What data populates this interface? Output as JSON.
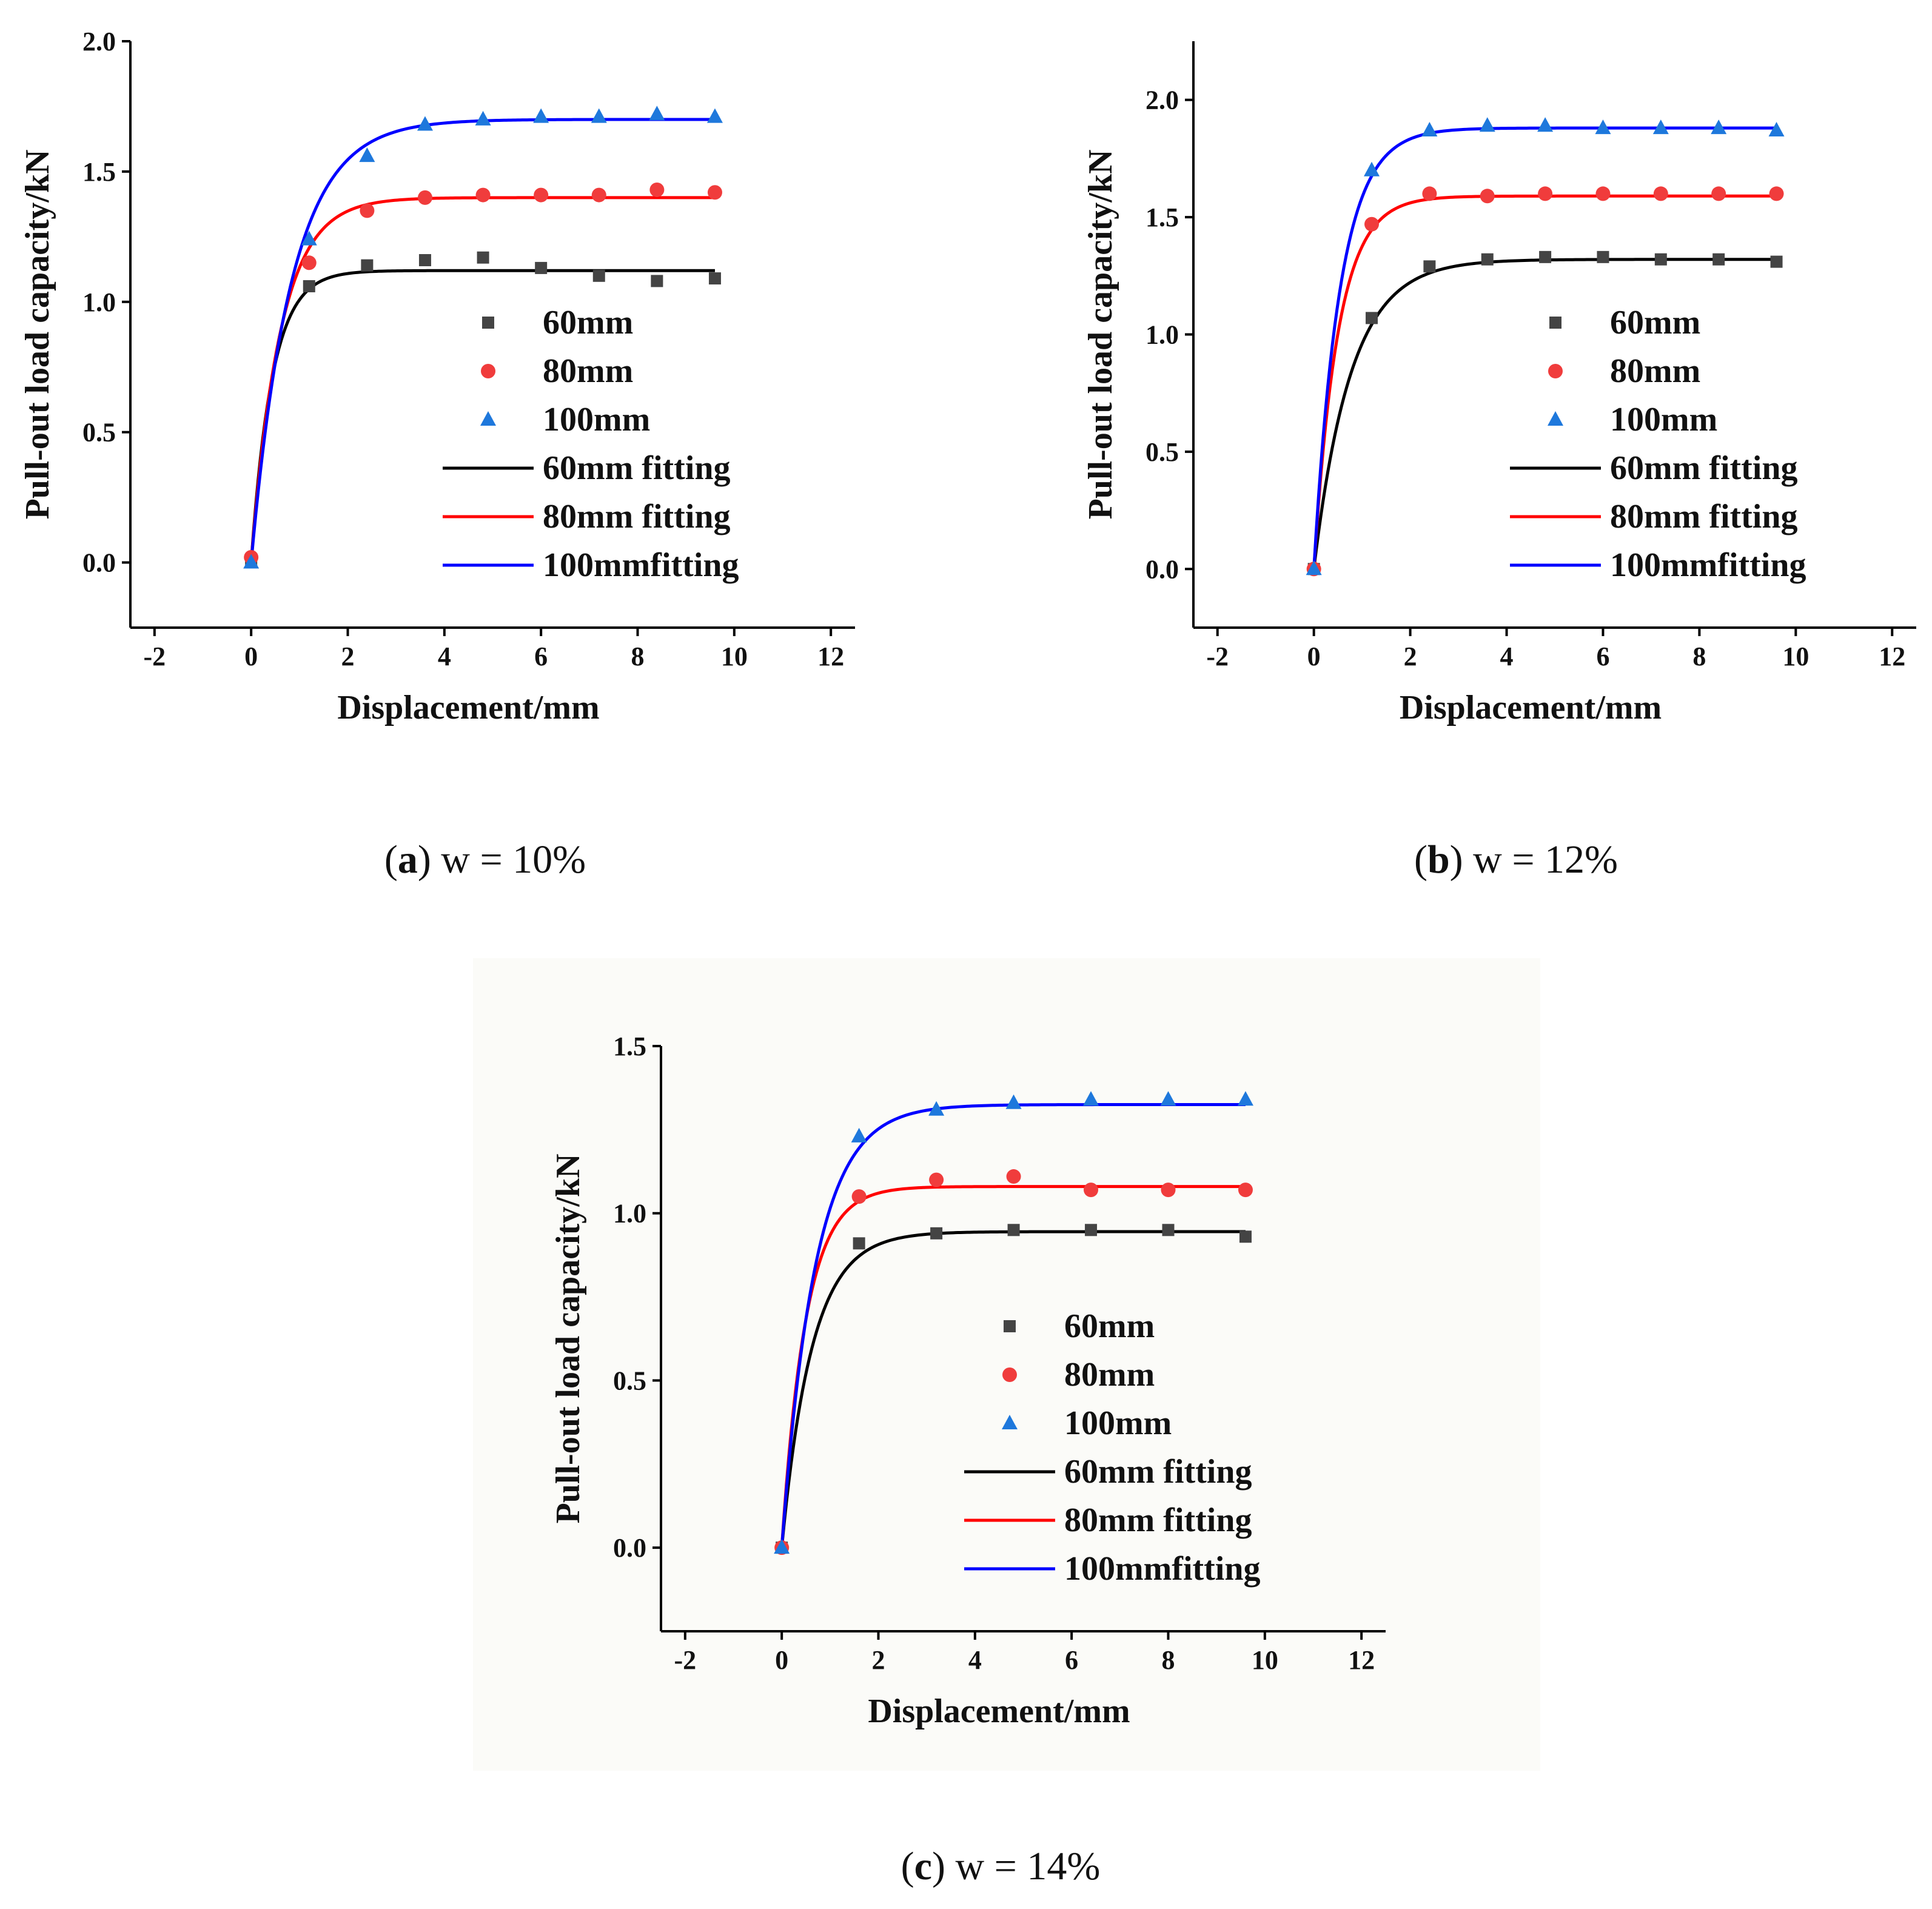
{
  "colors": {
    "s60": "#444444",
    "s80": "#f03c3c",
    "s100": "#1e78dc",
    "f60": "#000000",
    "f80": "#ff0000",
    "f100": "#0000ff"
  },
  "chart_data": [
    {
      "type": "scatter",
      "id": "a",
      "caption": {
        "letter": "a",
        "text": " w = 10%"
      },
      "xlabel": "Displacement/mm",
      "ylabel": "Pull-out load capacity/kN",
      "xlim": [
        -2.5,
        12.5
      ],
      "ylim": [
        -0.25,
        2.0
      ],
      "xticks": [
        "-2",
        "0",
        "2",
        "4",
        "6",
        "8",
        "10",
        "12"
      ],
      "yticks": [
        "0.0",
        "0.5",
        "1.0",
        "1.5",
        "2.0"
      ],
      "legend_position": "center-right",
      "series": [
        {
          "name": "60mm",
          "marker": "square",
          "x": [
            0,
            1.2,
            2.4,
            3.6,
            4.8,
            6.0,
            7.2,
            8.4,
            9.6
          ],
          "y": [
            0.01,
            1.06,
            1.14,
            1.16,
            1.17,
            1.13,
            1.1,
            1.08,
            1.09
          ]
        },
        {
          "name": "80mm",
          "marker": "circle",
          "x": [
            0,
            1.2,
            2.4,
            3.6,
            4.8,
            6.0,
            7.2,
            8.4,
            9.6
          ],
          "y": [
            0.02,
            1.15,
            1.35,
            1.4,
            1.41,
            1.41,
            1.41,
            1.43,
            1.42
          ]
        },
        {
          "name": "100mm",
          "marker": "triangle",
          "x": [
            0,
            1.2,
            2.4,
            3.6,
            4.8,
            6.0,
            7.2,
            8.4,
            9.6
          ],
          "y": [
            0.0,
            1.24,
            1.56,
            1.68,
            1.7,
            1.71,
            1.71,
            1.72,
            1.71
          ]
        }
      ],
      "fits": [
        {
          "name": "60mm fitting",
          "a": 1.12,
          "k": 2.3
        },
        {
          "name": "80mm fitting",
          "a": 1.4,
          "k": 1.65
        },
        {
          "name": "100mmfitting",
          "a": 1.7,
          "k": 1.2
        }
      ],
      "fit_xmax": 9.6
    },
    {
      "type": "scatter",
      "id": "b",
      "caption": {
        "letter": "b",
        "text": " w = 12%"
      },
      "xlabel": "Displacement/mm",
      "ylabel": "Pull-out load capacity/kN",
      "xlim": [
        -2.5,
        12.5
      ],
      "ylim": [
        -0.25,
        2.25
      ],
      "xticks": [
        "-2",
        "0",
        "2",
        "4",
        "6",
        "8",
        "10",
        "12"
      ],
      "yticks": [
        "0.0",
        "0.5",
        "1.0",
        "1.5",
        "2.0"
      ],
      "legend_position": "center-right",
      "series": [
        {
          "name": "60mm",
          "marker": "square",
          "x": [
            0,
            1.2,
            2.4,
            3.6,
            4.8,
            6.0,
            7.2,
            8.4,
            9.6
          ],
          "y": [
            0.0,
            1.07,
            1.29,
            1.32,
            1.33,
            1.33,
            1.32,
            1.32,
            1.31
          ]
        },
        {
          "name": "80mm",
          "marker": "circle",
          "x": [
            0,
            1.2,
            2.4,
            3.6,
            4.8,
            6.0,
            7.2,
            8.4,
            9.6
          ],
          "y": [
            0.0,
            1.47,
            1.6,
            1.59,
            1.6,
            1.6,
            1.6,
            1.6,
            1.6
          ]
        },
        {
          "name": "100mm",
          "marker": "triangle",
          "x": [
            0,
            1.2,
            2.4,
            3.6,
            4.8,
            6.0,
            7.2,
            8.4,
            9.6
          ],
          "y": [
            0.0,
            1.7,
            1.87,
            1.89,
            1.89,
            1.88,
            1.88,
            1.88,
            1.87
          ]
        }
      ],
      "fits": [
        {
          "name": "60mm fitting",
          "a": 1.32,
          "k": 1.3
        },
        {
          "name": "80mm fitting",
          "a": 1.59,
          "k": 2.0
        },
        {
          "name": "100mmfitting",
          "a": 1.88,
          "k": 1.85
        }
      ],
      "fit_xmax": 9.6
    },
    {
      "type": "scatter",
      "id": "c",
      "caption": {
        "letter": "c",
        "text": " w = 14%"
      },
      "xlabel": "Displacement/mm",
      "ylabel": "Pull-out load capacity/kN",
      "xlim": [
        -2.5,
        12.5
      ],
      "ylim": [
        -0.25,
        1.5
      ],
      "xticks": [
        "-2",
        "0",
        "2",
        "4",
        "6",
        "8",
        "10",
        "12"
      ],
      "yticks": [
        "0.0",
        "0.5",
        "1.0",
        "1.5"
      ],
      "legend_position": "center-right",
      "series": [
        {
          "name": "60mm",
          "marker": "square",
          "x": [
            0,
            1.6,
            3.2,
            4.8,
            6.4,
            8.0,
            9.6
          ],
          "y": [
            0.0,
            0.91,
            0.94,
            0.95,
            0.95,
            0.95,
            0.93
          ]
        },
        {
          "name": "80mm",
          "marker": "circle",
          "x": [
            0,
            1.6,
            3.2,
            4.8,
            6.4,
            8.0,
            9.6
          ],
          "y": [
            0.0,
            1.05,
            1.1,
            1.11,
            1.07,
            1.07,
            1.07
          ]
        },
        {
          "name": "100mm",
          "marker": "triangle",
          "x": [
            0,
            1.6,
            3.2,
            4.8,
            6.4,
            8.0,
            9.6
          ],
          "y": [
            0.0,
            1.23,
            1.31,
            1.33,
            1.34,
            1.34,
            1.34
          ]
        }
      ],
      "fits": [
        {
          "name": "60mm fitting",
          "a": 0.945,
          "k": 1.6
        },
        {
          "name": "80mm fitting",
          "a": 1.08,
          "k": 2.0
        },
        {
          "name": "100mmfitting",
          "a": 1.325,
          "k": 1.45
        }
      ],
      "fit_xmax": 9.6
    }
  ]
}
